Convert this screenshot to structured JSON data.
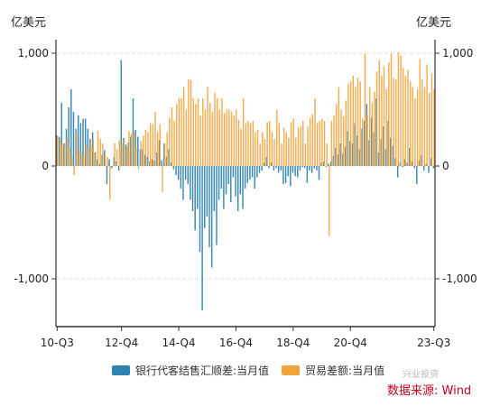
{
  "chart_data": {
    "type": "bar",
    "unit_left": "亿美元",
    "unit_right": "亿美元",
    "yticks": [
      "1,000",
      "0",
      "-1,000"
    ],
    "ytick_values": [
      1000,
      0,
      -1000
    ],
    "ylim": [
      -1400,
      1050
    ],
    "xticks": [
      "10-Q3",
      "12-Q4",
      "14-Q4",
      "16-Q4",
      "18-Q4",
      "20-Q4",
      "23-Q3"
    ],
    "xtick_index": [
      0,
      27,
      51,
      75,
      99,
      123,
      158
    ],
    "grid": true,
    "legend_position": "bottom",
    "series": [
      {
        "name": "银行代客结售汇顺差:当月值",
        "color": "#2e83b0",
        "values": [
          270,
          260,
          560,
          200,
          330,
          520,
          680,
          480,
          330,
          450,
          380,
          420,
          420,
          330,
          240,
          300,
          120,
          60,
          20,
          100,
          140,
          -160,
          60,
          -20,
          80,
          40,
          -40,
          940,
          250,
          190,
          210,
          260,
          600,
          320,
          260,
          150,
          150,
          100,
          80,
          40,
          60,
          50,
          120,
          230,
          50,
          200,
          80,
          150,
          30,
          -30,
          -80,
          -120,
          -200,
          -300,
          -120,
          -160,
          -300,
          -400,
          -570,
          -380,
          -760,
          -1280,
          -550,
          -450,
          -720,
          -900,
          -400,
          -700,
          -300,
          -200,
          -380,
          -250,
          -160,
          -320,
          -100,
          -270,
          -400,
          -250,
          -380,
          -200,
          -150,
          -120,
          -100,
          -200,
          -100,
          -60,
          -40,
          30,
          80,
          -20,
          30,
          -40,
          -20,
          -60,
          -40,
          -160,
          -150,
          -90,
          -180,
          -60,
          -90,
          -100,
          -40,
          -10,
          -20,
          -150,
          -40,
          -60,
          -20,
          -40,
          -120,
          30,
          40,
          -10,
          20,
          40,
          90,
          160,
          100,
          200,
          110,
          170,
          310,
          220,
          200,
          380,
          270,
          150,
          330,
          400,
          550,
          230,
          430,
          300,
          600,
          120,
          240,
          350,
          150,
          400,
          250,
          180,
          70,
          -100,
          30,
          -10,
          60,
          30,
          160,
          40,
          -20,
          -160,
          50,
          100,
          -40,
          20,
          -60,
          70,
          -20
        ]
      },
      {
        "name": "贸易差额:当月值",
        "color": "#f2a33a",
        "values": [
          260,
          240,
          180,
          200,
          240,
          170,
          90,
          -80,
          300,
          140,
          120,
          90,
          200,
          160,
          180,
          240,
          130,
          310,
          240,
          200,
          90,
          80,
          -300,
          -10,
          200,
          150,
          230,
          200,
          240,
          170,
          310,
          290,
          300,
          170,
          -30,
          220,
          270,
          320,
          300,
          380,
          370,
          480,
          300,
          370,
          -230,
          200,
          300,
          430,
          520,
          400,
          550,
          600,
          600,
          700,
          500,
          770,
          760,
          600,
          550,
          600,
          450,
          600,
          500,
          700,
          560,
          480,
          650,
          600,
          500,
          600,
          470,
          500,
          500,
          480,
          450,
          500,
          410,
          330,
          600,
          380,
          400,
          380,
          400,
          300,
          320,
          200,
          300,
          240,
          390,
          400,
          300,
          240,
          500,
          380,
          200,
          340,
          300,
          250,
          390,
          420,
          250,
          340,
          350,
          400,
          200,
          350,
          430,
          460,
          600,
          380,
          400,
          420,
          400,
          200,
          -620,
          400,
          450,
          550,
          700,
          500,
          440,
          580,
          730,
          750,
          800,
          700,
          780,
          750,
          420,
          1000,
          450,
          700,
          560,
          660,
          840,
          940,
          800,
          880,
          680,
          920,
          1000,
          780,
          770,
          1010,
          980,
          870,
          800,
          850,
          750,
          700,
          600,
          680,
          950,
          770,
          700,
          900,
          650,
          820,
          680
        ]
      }
    ],
    "source": "数据来源: Wind",
    "watermark": "兴业投资"
  }
}
